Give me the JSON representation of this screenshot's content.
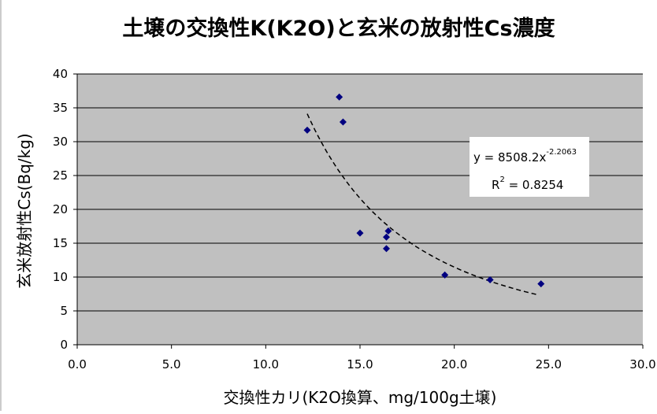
{
  "chart_data": {
    "type": "scatter",
    "title": "土壌の交換性K(K2O)と玄米の放射性Cs濃度",
    "xlabel": "交換性カリ(K2O換算、mg/100g土壌)",
    "ylabel": "玄米放射性Cs(Bq/kg)",
    "xlim": [
      0,
      30
    ],
    "ylim": [
      0,
      40
    ],
    "x_ticks": [
      "0.0",
      "5.0",
      "10.0",
      "15.0",
      "20.0",
      "25.0",
      "30.0"
    ],
    "y_ticks": [
      "0",
      "5",
      "10",
      "15",
      "20",
      "25",
      "30",
      "35",
      "40"
    ],
    "grid": true,
    "series": [
      {
        "marker": "diamond",
        "color": "#000080",
        "points": [
          {
            "x": 12.2,
            "y": 31.7
          },
          {
            "x": 13.9,
            "y": 36.6
          },
          {
            "x": 14.1,
            "y": 32.9
          },
          {
            "x": 15.0,
            "y": 16.5
          },
          {
            "x": 16.4,
            "y": 14.2
          },
          {
            "x": 16.4,
            "y": 15.9
          },
          {
            "x": 16.5,
            "y": 16.8
          },
          {
            "x": 19.5,
            "y": 10.3
          },
          {
            "x": 21.9,
            "y": 9.6
          },
          {
            "x": 24.6,
            "y": 9.0
          }
        ]
      }
    ],
    "trendline": {
      "type": "power",
      "coef": 8508.2,
      "exponent": -2.2063,
      "x_range": [
        12.2,
        24.4
      ],
      "style": "dashed",
      "color": "#000000"
    },
    "equation": {
      "y_prefix": "y = 8508.2x",
      "y_exponent": "-2.2063",
      "r2_prefix": "R",
      "r2_sup": "2",
      "r2_suffix": " = 0.8254"
    },
    "colors": {
      "plot_background": "#c0c0c0",
      "marker": "#000080",
      "grid": "#000000"
    }
  }
}
